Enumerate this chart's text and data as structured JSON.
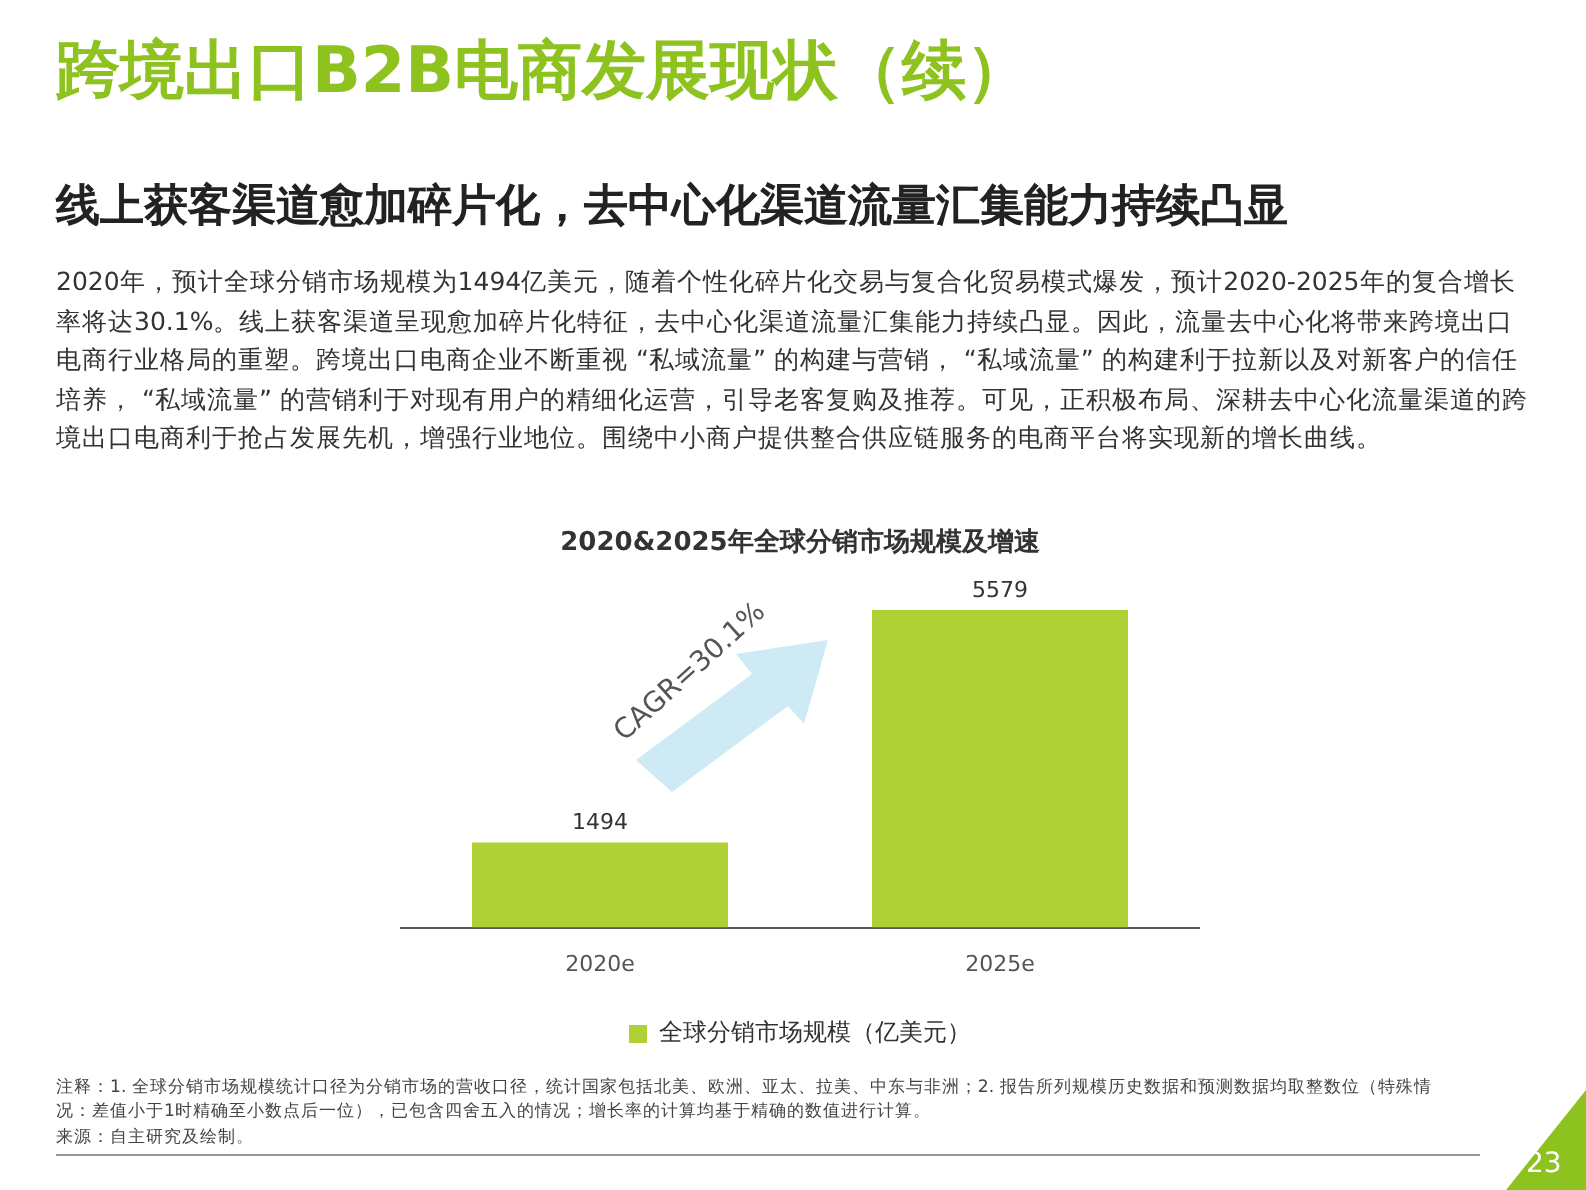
{
  "chart_data": {
    "type": "bar",
    "title": "跨境出口B2B电商发展现状（续）",
    "subtitle": "线上获客渠道愈加碎片化，去中心化渠道流量汇集能力持续凸显",
    "annotations": [
      "2020年，预计全球分销市场规模为1494亿美元，随着个性化碎片化交易与复合化贸易模式爆发，预计2020-2025年的复合增长率将达30.1%。线上获客渠道呈现愈加碎片化特征，去中心化渠道流量汇集能力持续凸显。因此，流量去中心化将带来跨境出口电商行业格局的重塑。跨境出口电商企业不断重视 “私域流量” 的构建与营销， “私域流量” 的构建利于拉新以及对新客户的信任培养， “私域流量” 的营销利于对现有用户的精细化运营，引导老客复购及推荐。可见，正积极布局、深耕去中心化流量渠道的跨境出口电商利于抢占发展先机，增强行业地位。围绕中小商户提供整合供应链服务的电商平台将实现新的增长曲线。",
      "2020&2025年全球分销市场规模及增速",
      "CAGR=30.1%",
      "注释：1. 全球分销市场规模统计口径为分销市场的营收口径，统计国家包括北美、欧洲、亚太、拉美、中东与非洲；2. 报告所列规模历史数据和预测数据均取整数位（特殊情况：差值小于1时精确至小数点后一位），已包含四舍五入的情况；增长率的计算均基于精确的数值进行计算。",
      "来源：自主研究及绘制。",
      "23"
    ],
    "categories": [
      "2020e",
      "2025e"
    ],
    "series": [
      {
        "name": "全球分销市场规模（亿美元）",
        "color": "#b0d136",
        "values": [
          1494,
          5579
        ]
      }
    ],
    "data_labels": true,
    "legend": "bottom",
    "grid": false
  }
}
